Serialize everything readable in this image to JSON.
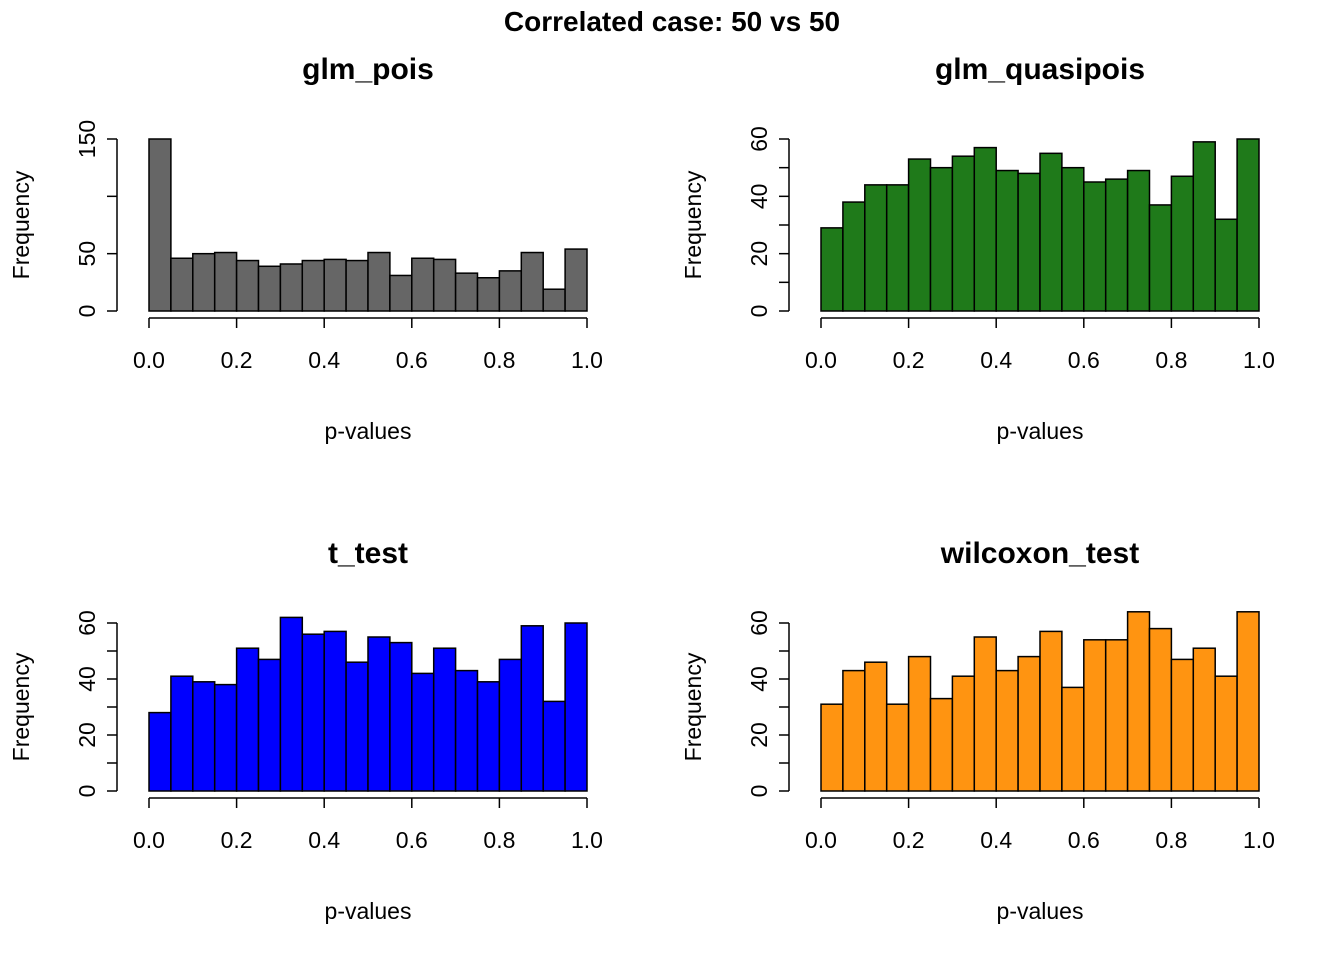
{
  "main_title": "Correlated case: 50 vs 50",
  "chart_data": [
    {
      "type": "bar",
      "title": "glm_pois",
      "xlabel": "p-values",
      "ylabel": "Frequency",
      "color": "#666666",
      "bin_edges": [
        0.0,
        0.05,
        0.1,
        0.15,
        0.2,
        0.25,
        0.3,
        0.35,
        0.4,
        0.45,
        0.5,
        0.55,
        0.6,
        0.65,
        0.7,
        0.75,
        0.8,
        0.85,
        0.9,
        0.95,
        1.0
      ],
      "values": [
        150,
        46,
        50,
        51,
        44,
        39,
        41,
        44,
        45,
        44,
        51,
        31,
        46,
        45,
        33,
        29,
        35,
        51,
        19,
        54
      ],
      "xlim": [
        0,
        1
      ],
      "ylim": [
        0,
        150
      ],
      "xticks": [
        0.0,
        0.2,
        0.4,
        0.6,
        0.8,
        1.0
      ],
      "xtick_labels": [
        "0.0",
        "0.2",
        "0.4",
        "0.6",
        "0.8",
        "1.0"
      ],
      "yticks": [
        0,
        50,
        100,
        150
      ],
      "ytick_labels": [
        "0",
        "50",
        "",
        "150"
      ]
    },
    {
      "type": "bar",
      "title": "glm_quasipois",
      "xlabel": "p-values",
      "ylabel": "Frequency",
      "color": "#1f7a1a",
      "bin_edges": [
        0.0,
        0.05,
        0.1,
        0.15,
        0.2,
        0.25,
        0.3,
        0.35,
        0.4,
        0.45,
        0.5,
        0.55,
        0.6,
        0.65,
        0.7,
        0.75,
        0.8,
        0.85,
        0.9,
        0.95,
        1.0
      ],
      "values": [
        29,
        38,
        44,
        44,
        53,
        50,
        54,
        57,
        49,
        48,
        55,
        50,
        45,
        46,
        49,
        37,
        47,
        59,
        32,
        60
      ],
      "xlim": [
        0,
        1
      ],
      "ylim": [
        0,
        60
      ],
      "xticks": [
        0.0,
        0.2,
        0.4,
        0.6,
        0.8,
        1.0
      ],
      "xtick_labels": [
        "0.0",
        "0.2",
        "0.4",
        "0.6",
        "0.8",
        "1.0"
      ],
      "yticks": [
        0,
        10,
        20,
        30,
        40,
        50,
        60
      ],
      "ytick_labels": [
        "0",
        "",
        "20",
        "",
        "40",
        "",
        "60"
      ]
    },
    {
      "type": "bar",
      "title": "t_test",
      "xlabel": "p-values",
      "ylabel": "Frequency",
      "color": "#0000ff",
      "bin_edges": [
        0.0,
        0.05,
        0.1,
        0.15,
        0.2,
        0.25,
        0.3,
        0.35,
        0.4,
        0.45,
        0.5,
        0.55,
        0.6,
        0.65,
        0.7,
        0.75,
        0.8,
        0.85,
        0.9,
        0.95,
        1.0
      ],
      "values": [
        28,
        41,
        39,
        38,
        51,
        47,
        62,
        56,
        57,
        46,
        55,
        53,
        42,
        51,
        43,
        39,
        47,
        59,
        32,
        60
      ],
      "xlim": [
        0,
        1
      ],
      "ylim": [
        0,
        60
      ],
      "xticks": [
        0.0,
        0.2,
        0.4,
        0.6,
        0.8,
        1.0
      ],
      "xtick_labels": [
        "0.0",
        "0.2",
        "0.4",
        "0.6",
        "0.8",
        "1.0"
      ],
      "yticks": [
        0,
        10,
        20,
        30,
        40,
        50,
        60
      ],
      "ytick_labels": [
        "0",
        "",
        "20",
        "",
        "40",
        "",
        "60"
      ]
    },
    {
      "type": "bar",
      "title": "wilcoxon_test",
      "xlabel": "p-values",
      "ylabel": "Frequency",
      "color": "#ff9411",
      "bin_edges": [
        0.0,
        0.05,
        0.1,
        0.15,
        0.2,
        0.25,
        0.3,
        0.35,
        0.4,
        0.45,
        0.5,
        0.55,
        0.6,
        0.65,
        0.7,
        0.75,
        0.8,
        0.85,
        0.9,
        0.95,
        1.0
      ],
      "values": [
        31,
        43,
        46,
        31,
        48,
        33,
        41,
        55,
        43,
        48,
        57,
        37,
        54,
        54,
        64,
        58,
        47,
        51,
        41,
        64
      ],
      "xlim": [
        0,
        1
      ],
      "ylim": [
        0,
        60
      ],
      "xticks": [
        0.0,
        0.2,
        0.4,
        0.6,
        0.8,
        1.0
      ],
      "xtick_labels": [
        "0.0",
        "0.2",
        "0.4",
        "0.6",
        "0.8",
        "1.0"
      ],
      "yticks": [
        0,
        10,
        20,
        30,
        40,
        50,
        60
      ],
      "ytick_labels": [
        "0",
        "",
        "20",
        "",
        "40",
        "",
        "60"
      ]
    }
  ]
}
